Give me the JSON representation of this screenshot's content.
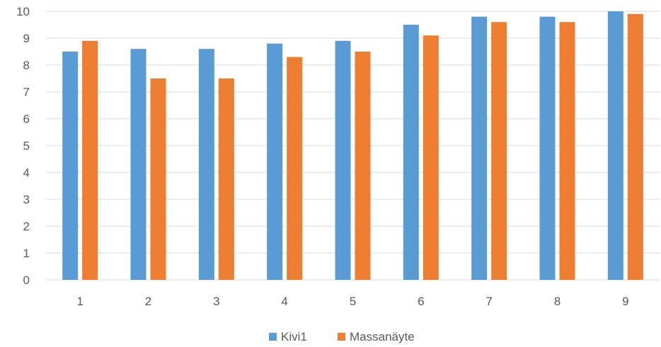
{
  "chart_data": {
    "type": "bar",
    "title": "",
    "xlabel": "",
    "ylabel": "",
    "categories": [
      "1",
      "2",
      "3",
      "4",
      "5",
      "6",
      "7",
      "8",
      "9"
    ],
    "series": [
      {
        "name": "Kivi1",
        "color": "#5B9BD5",
        "values": [
          8.5,
          8.6,
          8.6,
          8.8,
          8.9,
          9.5,
          9.8,
          9.8,
          10.0
        ]
      },
      {
        "name": "Massanäyte",
        "color": "#ED7D31",
        "values": [
          8.9,
          7.5,
          7.5,
          8.3,
          8.5,
          9.1,
          9.6,
          9.6,
          9.9
        ]
      }
    ],
    "ylim": [
      0,
      10
    ],
    "yticks": [
      "0",
      "1",
      "2",
      "3",
      "4",
      "5",
      "6",
      "7",
      "8",
      "9",
      "10"
    ],
    "grid": true,
    "gridline_color": "#D9D9D9",
    "legend_position": "bottom"
  }
}
